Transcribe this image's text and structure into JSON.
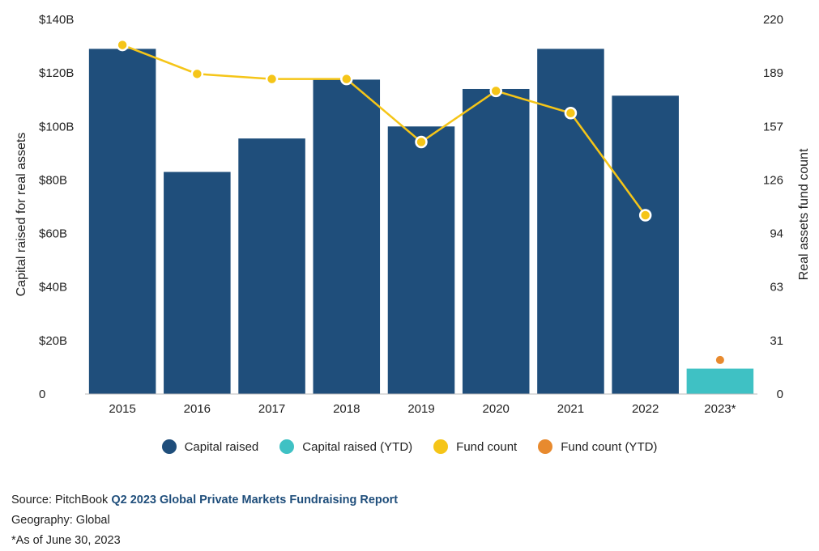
{
  "chart_data": {
    "type": "bar",
    "categories": [
      "2015",
      "2016",
      "2017",
      "2018",
      "2019",
      "2020",
      "2021",
      "2022",
      "2023*"
    ],
    "series": [
      {
        "name": "Capital raised",
        "type": "bar",
        "axis": "left",
        "values": [
          129,
          83,
          95.5,
          117.5,
          100,
          114,
          129,
          111.5,
          null
        ],
        "color": "#1f4e7b"
      },
      {
        "name": "Capital raised (YTD)",
        "type": "bar",
        "axis": "left",
        "values": [
          null,
          null,
          null,
          null,
          null,
          null,
          null,
          null,
          9.5
        ],
        "color": "#3fc1c4"
      },
      {
        "name": "Fund count",
        "type": "line",
        "axis": "right",
        "values": [
          205,
          188,
          185,
          185,
          148,
          178,
          165,
          105,
          null
        ],
        "color": "#f5c518"
      },
      {
        "name": "Fund count (YTD)",
        "type": "point",
        "axis": "right",
        "values": [
          null,
          null,
          null,
          null,
          null,
          null,
          null,
          null,
          20
        ],
        "color": "#e88a2e"
      }
    ],
    "ylabel": "Capital raised for real assets",
    "y2label": "Real assets fund count",
    "ylim": [
      0,
      140
    ],
    "y2lim": [
      0,
      220
    ],
    "y_ticks": [
      "0",
      "$20B",
      "$40B",
      "$60B",
      "$80B",
      "$100B",
      "$120B",
      "$140B"
    ],
    "y2_ticks": [
      "0",
      "31",
      "63",
      "94",
      "126",
      "157",
      "189",
      "220"
    ],
    "legend_position": "bottom",
    "grid": false
  },
  "footer": {
    "source_prefix": "Source: PitchBook ",
    "source_report": "Q2 2023 Global Private Markets Fundraising Report",
    "geography": "Geography: Global",
    "note": "*As of June 30, 2023"
  }
}
